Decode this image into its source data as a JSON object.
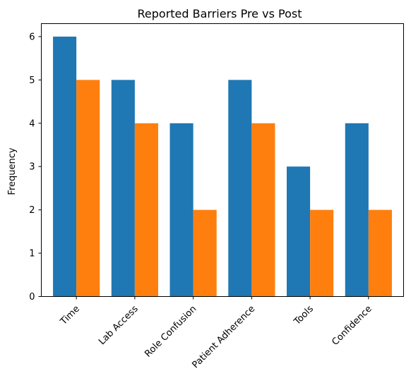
{
  "chart_data": {
    "type": "bar",
    "title": "Reported Barriers Pre vs Post",
    "xlabel": "",
    "ylabel": "Frequency",
    "categories": [
      "Time",
      "Lab Access",
      "Role Confusion",
      "Patient Adherence",
      "Tools",
      "Confidence"
    ],
    "series": [
      {
        "values": [
          6,
          5,
          4,
          5,
          3,
          4
        ],
        "color": "#1f77b4"
      },
      {
        "values": [
          5,
          4,
          2,
          4,
          2,
          2
        ],
        "color": "#ff7f0e"
      }
    ],
    "ylim": [
      0,
      6.3
    ],
    "yticks": [
      0,
      1,
      2,
      3,
      4,
      5,
      6
    ],
    "grid": false,
    "legend": "none"
  }
}
